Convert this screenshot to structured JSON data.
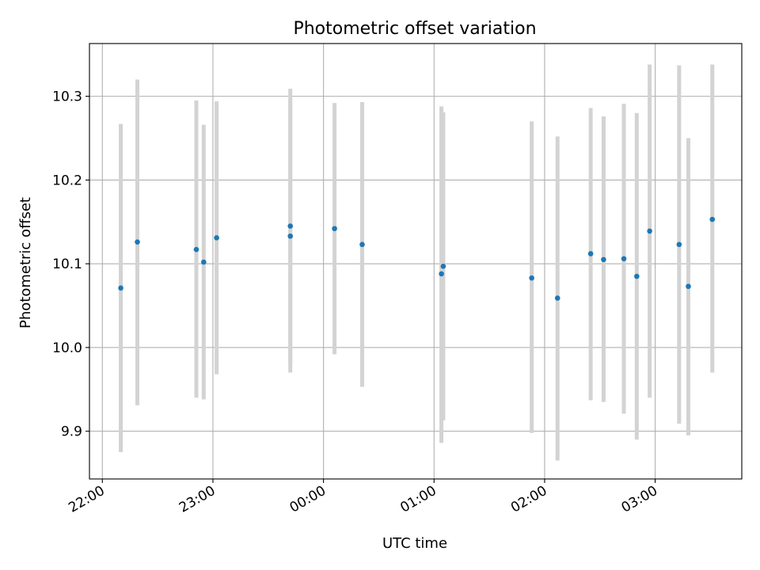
{
  "chart_data": {
    "type": "scatter",
    "title": "Photometric offset variation",
    "xlabel": "UTC time",
    "ylabel": "Photometric offset",
    "grid": true,
    "colors": {
      "point": "#1f77b4",
      "errorbar": "#d3d3d3",
      "grid": "#b0b0b0"
    },
    "x_tick_labels": [
      "22:00",
      "23:00",
      "00:00",
      "01:00",
      "02:00",
      "03:00"
    ],
    "y_ticks": [
      9.9,
      10.0,
      10.1,
      10.2,
      10.3
    ],
    "y_tick_labels": [
      "9.9",
      "10.0",
      "10.1",
      "10.2",
      "10.3"
    ],
    "xlim": [
      "21:53",
      "03:47"
    ],
    "ylim": [
      9.843,
      10.363
    ],
    "points": [
      {
        "t": "22:10",
        "y": 10.071,
        "lo": 9.875,
        "hi": 10.267
      },
      {
        "t": "22:19",
        "y": 10.126,
        "lo": 9.931,
        "hi": 10.32
      },
      {
        "t": "22:51",
        "y": 10.117,
        "lo": 9.94,
        "hi": 10.295
      },
      {
        "t": "22:55",
        "y": 10.102,
        "lo": 9.938,
        "hi": 10.266
      },
      {
        "t": "23:02",
        "y": 10.131,
        "lo": 9.968,
        "hi": 10.294
      },
      {
        "t": "23:42",
        "y": 10.145,
        "lo": 9.982,
        "hi": 10.309
      },
      {
        "t": "23:42",
        "y": 10.133,
        "lo": 9.97,
        "hi": 10.296
      },
      {
        "t": "00:06",
        "y": 10.142,
        "lo": 9.992,
        "hi": 10.292
      },
      {
        "t": "00:21",
        "y": 10.123,
        "lo": 9.953,
        "hi": 10.293
      },
      {
        "t": "01:04",
        "y": 10.088,
        "lo": 9.886,
        "hi": 10.288
      },
      {
        "t": "01:05",
        "y": 10.097,
        "lo": 9.913,
        "hi": 10.281
      },
      {
        "t": "01:53",
        "y": 10.083,
        "lo": 9.898,
        "hi": 10.27
      },
      {
        "t": "02:07",
        "y": 10.059,
        "lo": 9.865,
        "hi": 10.252
      },
      {
        "t": "02:25",
        "y": 10.112,
        "lo": 9.937,
        "hi": 10.286
      },
      {
        "t": "02:32",
        "y": 10.105,
        "lo": 9.935,
        "hi": 10.276
      },
      {
        "t": "02:43",
        "y": 10.106,
        "lo": 9.921,
        "hi": 10.291
      },
      {
        "t": "02:50",
        "y": 10.085,
        "lo": 9.89,
        "hi": 10.28
      },
      {
        "t": "02:57",
        "y": 10.139,
        "lo": 9.94,
        "hi": 10.338
      },
      {
        "t": "03:13",
        "y": 10.123,
        "lo": 9.909,
        "hi": 10.337
      },
      {
        "t": "03:18",
        "y": 10.073,
        "lo": 9.895,
        "hi": 10.25
      },
      {
        "t": "03:31",
        "y": 10.153,
        "lo": 9.97,
        "hi": 10.338
      }
    ]
  }
}
